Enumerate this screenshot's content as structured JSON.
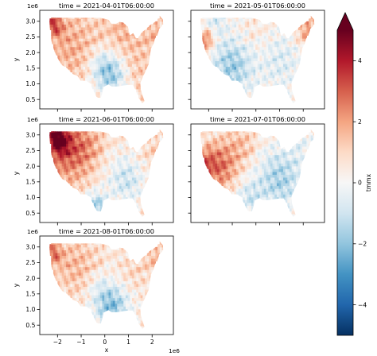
{
  "chart_data": {
    "type": "heatmap",
    "layout": "3 rows x 2 columns, sharex, sharey",
    "panels": [
      {
        "title": "time = 2021-04-01T06:00:00",
        "pattern": "april"
      },
      {
        "title": "time = 2021-05-01T06:00:00",
        "pattern": "may"
      },
      {
        "title": "time = 2021-06-01T06:00:00",
        "pattern": "june"
      },
      {
        "title": "time = 2021-07-01T06:00:00",
        "pattern": "july"
      },
      {
        "title": "time = 2021-08-01T06:00:00",
        "pattern": "august"
      }
    ],
    "xlabel": "x",
    "ylabel": "y",
    "x_offset_text": "1e6",
    "y_offset_text": "1e6",
    "xlim": [
      -2.75,
      2.9
    ],
    "ylim": [
      0.2,
      3.35
    ],
    "x_ticks": [
      -2,
      -1,
      0,
      1,
      2
    ],
    "x_tick_labels": [
      "−2",
      "−1",
      "0",
      "1",
      "2"
    ],
    "y_ticks": [
      0.5,
      1.0,
      1.5,
      2.0,
      2.5,
      3.0
    ],
    "y_tick_labels": [
      "0.5",
      "1.0",
      "1.5",
      "2.0",
      "2.5",
      "3.0"
    ],
    "colorbar": {
      "label": "tmmx",
      "cmap": "RdBu_r",
      "vmin": -5,
      "vmax": 5,
      "extend": "max",
      "ticks": [
        -4,
        -2,
        0,
        2,
        4
      ],
      "tick_labels": [
        "−4",
        "−2",
        "0",
        "2",
        "4"
      ]
    }
  }
}
